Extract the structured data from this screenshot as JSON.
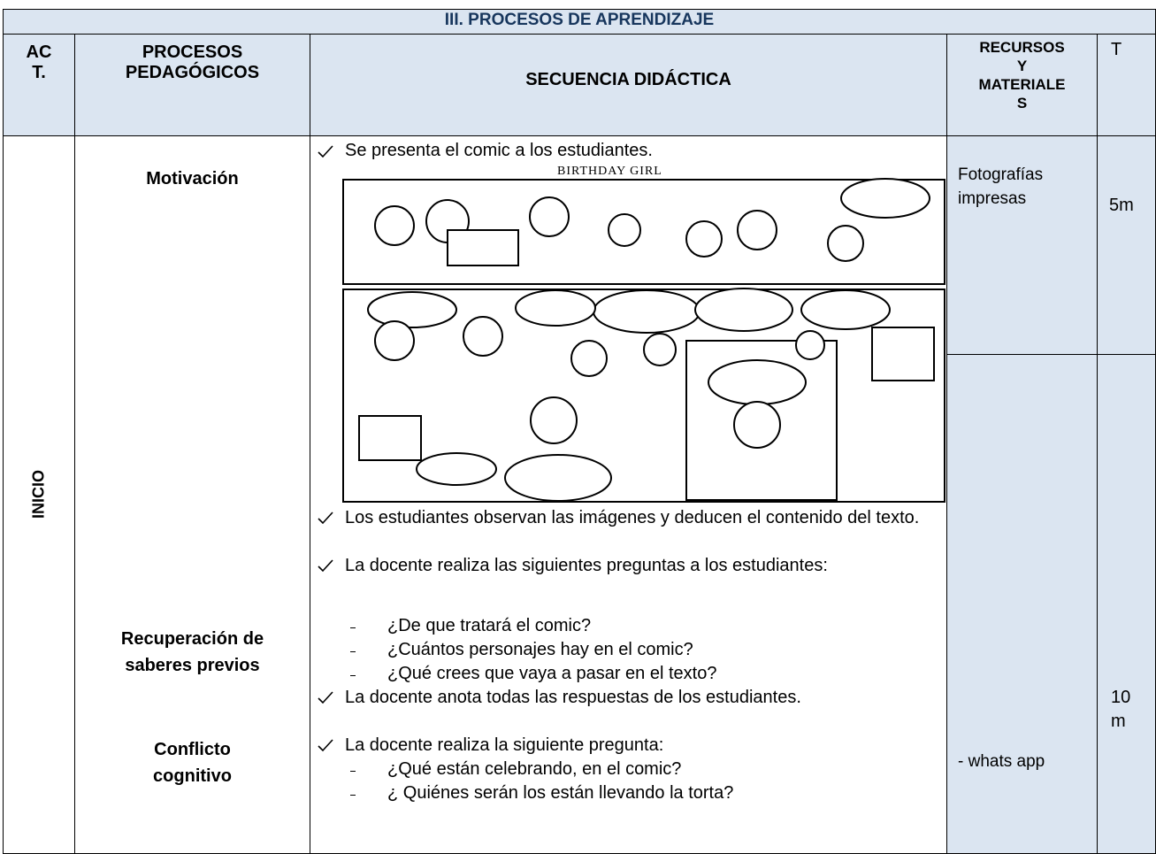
{
  "title": "III. PROCESOS DE APRENDIZAJE",
  "columns": [
    [
      "AC",
      "T."
    ],
    [
      "PROCESOS",
      "PEDAGÓGICOS"
    ],
    [
      "SECUENCIA DIDÁCTICA"
    ],
    [
      "RECURSOS",
      "Y",
      "MATERIALE",
      "S"
    ],
    [
      "T"
    ]
  ],
  "activity": "INICIO",
  "processes": [
    [
      "Motivación"
    ],
    [
      "Recuperación de",
      "saberes previos"
    ],
    [
      "Conflicto",
      "cognitivo"
    ]
  ],
  "sequence": {
    "intro": "Se presenta el comic a los estudiantes.",
    "comic_title": "BIRTHDAY GIRL",
    "items": [
      {
        "text": "Los estudiantes observan las imágenes y deducen el contenido del texto."
      },
      {
        "text": "La docente realiza las siguientes preguntas a los estudiantes:",
        "sub": [
          "¿De que tratará el comic?",
          "¿Cuántos personajes hay en el comic?",
          "¿Qué crees que vaya a pasar en el texto?"
        ]
      },
      {
        "text": "La docente anota todas las respuestas de los estudiantes."
      },
      {
        "text": "La docente realiza la siguiente pregunta:",
        "sub": [
          "¿Qué están celebrando, en el comic?",
          "¿ Quiénes serán los están llevando la torta?"
        ]
      }
    ]
  },
  "resources": [
    "Fotografías impresas",
    "- whats app"
  ],
  "times": [
    "5m",
    "10 m"
  ]
}
